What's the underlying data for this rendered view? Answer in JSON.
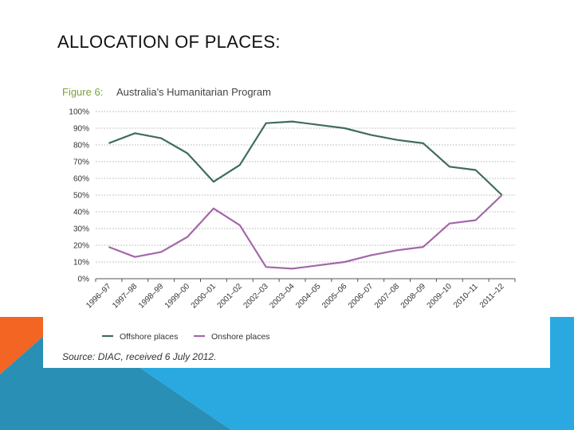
{
  "slide": {
    "title": "ALLOCATION OF PLACES:",
    "accent_colors": {
      "orange": "#F26522",
      "teal": "#2A8FB5",
      "blue": "#29A9E0",
      "light_blue": "#5DC4EE"
    }
  },
  "figure": {
    "label": "Figure 6:",
    "title": "Australia's Humanitarian Program",
    "source": "Source: DIAC, received 6 July 2012.",
    "label_color": "#7BA13A"
  },
  "chart_data": {
    "type": "line",
    "title": "Australia's Humanitarian Program",
    "xlabel": "",
    "ylabel": "",
    "ylim": [
      0,
      100
    ],
    "yticks": [
      "0%",
      "10%",
      "20%",
      "30%",
      "40%",
      "50%",
      "60%",
      "70%",
      "80%",
      "90%",
      "100%"
    ],
    "grid": true,
    "legend_position": "bottom-left",
    "categories": [
      "1996–97",
      "1997–98",
      "1998–99",
      "1999–00",
      "2000–01",
      "2001–02",
      "2002–03",
      "2003–04",
      "2004–05",
      "2005–06",
      "2006–07",
      "2007–08",
      "2008–09",
      "2009–10",
      "2010–11",
      "2011–12"
    ],
    "series": [
      {
        "name": "Offshore places",
        "color": "#3F6B62",
        "values": [
          81,
          87,
          84,
          75,
          58,
          68,
          93,
          94,
          92,
          90,
          86,
          83,
          81,
          67,
          65,
          50
        ]
      },
      {
        "name": "Onshore places",
        "color": "#A268A8",
        "values": [
          19,
          13,
          16,
          25,
          42,
          32,
          7,
          6,
          8,
          10,
          14,
          17,
          19,
          33,
          35,
          50
        ]
      }
    ]
  }
}
